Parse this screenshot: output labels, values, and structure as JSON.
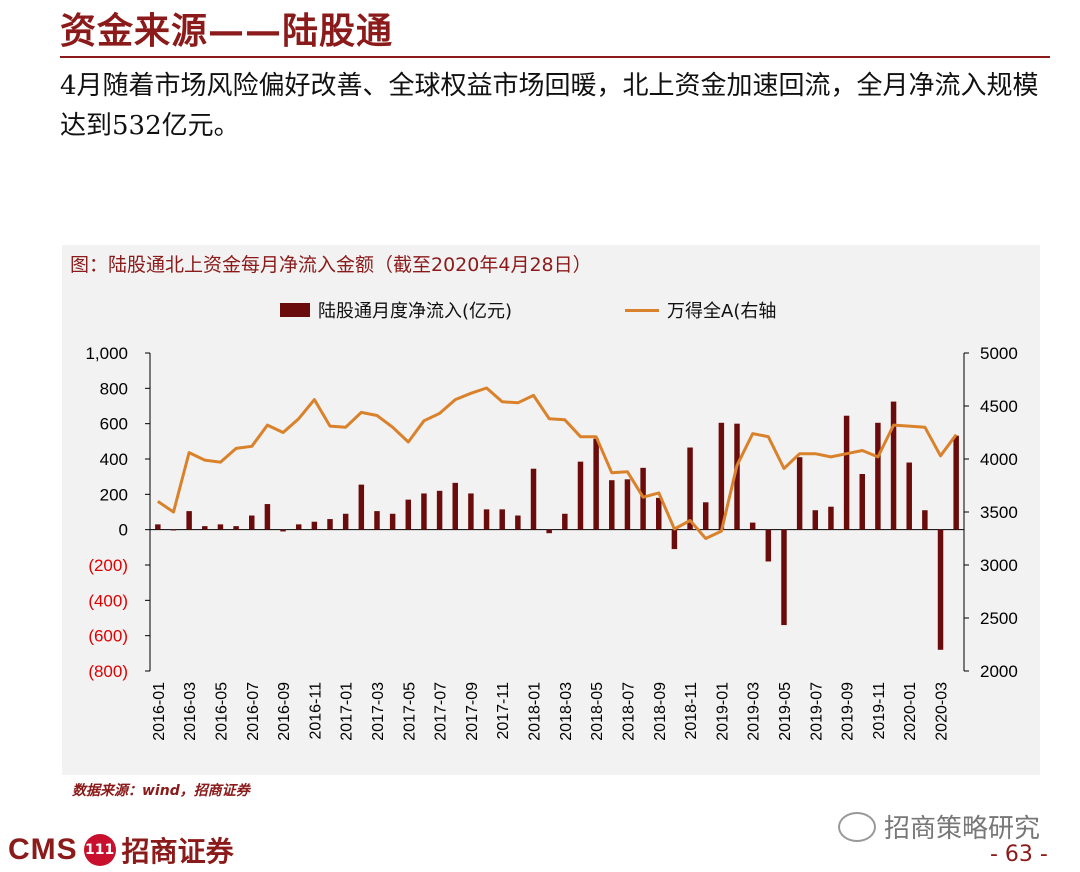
{
  "slide": {
    "title": "资金来源——陆股通",
    "subtitle": "4月随着市场风险偏好改善、全球权益市场回暖，北上资金加速回流，全月净流入规模达到532亿元。",
    "source": "数据来源：wind，招商证券",
    "logo_text": "CMS",
    "logo_badge": "111",
    "logo_cn": "招商证券",
    "watermark": "招商策略研究",
    "page_number": "- 63 -"
  },
  "colors": {
    "accent": "#8b1a1a",
    "bar": "#6b0c0c",
    "line": "#d9822b",
    "negative_tick": "#e00000"
  },
  "chart_data": {
    "type": "bar",
    "title": "图：陆股通北上资金每月净流入金额（截至2020年4月28日）",
    "legend_position": "top",
    "grid": false,
    "categories": [
      "2016-01",
      "2016-02",
      "2016-03",
      "2016-04",
      "2016-05",
      "2016-06",
      "2016-07",
      "2016-08",
      "2016-09",
      "2016-10",
      "2016-11",
      "2016-12",
      "2017-01",
      "2017-02",
      "2017-03",
      "2017-04",
      "2017-05",
      "2017-06",
      "2017-07",
      "2017-08",
      "2017-09",
      "2017-10",
      "2017-11",
      "2017-12",
      "2018-01",
      "2018-02",
      "2018-03",
      "2018-04",
      "2018-05",
      "2018-06",
      "2018-07",
      "2018-08",
      "2018-09",
      "2018-10",
      "2018-11",
      "2018-12",
      "2019-01",
      "2019-02",
      "2019-03",
      "2019-04",
      "2019-05",
      "2019-06",
      "2019-07",
      "2019-08",
      "2019-09",
      "2019-10",
      "2019-11",
      "2019-12",
      "2020-01",
      "2020-02",
      "2020-03",
      "2020-04"
    ],
    "x_tick_labels": [
      "2016-01",
      "2016-03",
      "2016-05",
      "2016-07",
      "2016-09",
      "2016-11",
      "2017-01",
      "2017-03",
      "2017-05",
      "2017-07",
      "2017-09",
      "2017-11",
      "2018-01",
      "2018-03",
      "2018-05",
      "2018-07",
      "2018-09",
      "2018-11",
      "2019-01",
      "2019-03",
      "2019-05",
      "2019-07",
      "2019-09",
      "2019-11",
      "2020-01",
      "2020-03"
    ],
    "series": [
      {
        "name": "陆股通月度净流入(亿元)",
        "type": "bar",
        "axis": "left",
        "values": [
          30,
          0,
          105,
          20,
          30,
          20,
          80,
          145,
          -10,
          30,
          45,
          60,
          90,
          255,
          105,
          90,
          170,
          205,
          220,
          265,
          205,
          115,
          115,
          80,
          345,
          -20,
          90,
          385,
          515,
          280,
          285,
          350,
          180,
          -110,
          465,
          155,
          605,
          600,
          40,
          -180,
          -540,
          410,
          110,
          130,
          645,
          315,
          605,
          725,
          380,
          110,
          -680,
          532
        ]
      },
      {
        "name": "万得全A(右轴",
        "type": "line",
        "axis": "right",
        "values": [
          3600,
          3500,
          4060,
          3990,
          3970,
          4100,
          4120,
          4320,
          4250,
          4380,
          4560,
          4310,
          4300,
          4440,
          4410,
          4300,
          4160,
          4360,
          4430,
          4560,
          4620,
          4670,
          4540,
          4530,
          4600,
          4380,
          4370,
          4210,
          4210,
          3870,
          3880,
          3640,
          3680,
          3340,
          3420,
          3250,
          3320,
          3940,
          4240,
          4210,
          3910,
          4050,
          4050,
          4020,
          4050,
          4080,
          4020,
          4320,
          4310,
          4300,
          4030,
          4230
        ]
      }
    ],
    "y_left": {
      "ylim": [
        -800,
        1000
      ],
      "ticks": [
        1000,
        800,
        600,
        400,
        200,
        0,
        -200,
        -400,
        -600,
        -800
      ],
      "tick_labels": [
        "1,000",
        "800",
        "600",
        "400",
        "200",
        "0",
        "(200)",
        "(400)",
        "(600)",
        "(800)"
      ]
    },
    "y_right": {
      "ylim": [
        2000,
        5000
      ],
      "ticks": [
        5000,
        4500,
        4000,
        3500,
        3000,
        2500,
        2000
      ],
      "tick_labels": [
        "5000",
        "4500",
        "4000",
        "3500",
        "3000",
        "2500",
        "2000"
      ]
    }
  }
}
